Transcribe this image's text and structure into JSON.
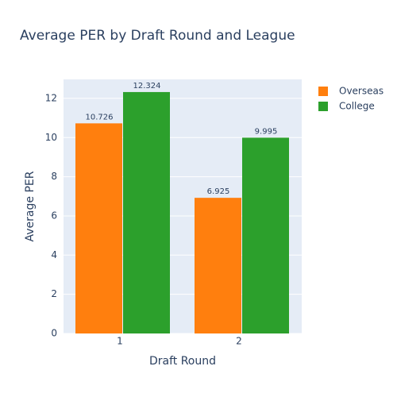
{
  "chart_data": {
    "type": "bar",
    "title": "Average PER by Draft Round and League",
    "x_label": "Draft Round",
    "y_label": "Average PER",
    "categories": [
      "1",
      "2"
    ],
    "series": [
      {
        "name": "Overseas",
        "color": "#ff7f0e",
        "values": [
          10.726,
          6.925
        ]
      },
      {
        "name": "College",
        "color": "#2ca02c",
        "values": [
          12.324,
          9.995
        ]
      }
    ],
    "ylim": [
      0,
      12.97
    ],
    "yticks": [
      0,
      2,
      4,
      6,
      8,
      10,
      12
    ],
    "grid": true,
    "legend": "top-right"
  }
}
